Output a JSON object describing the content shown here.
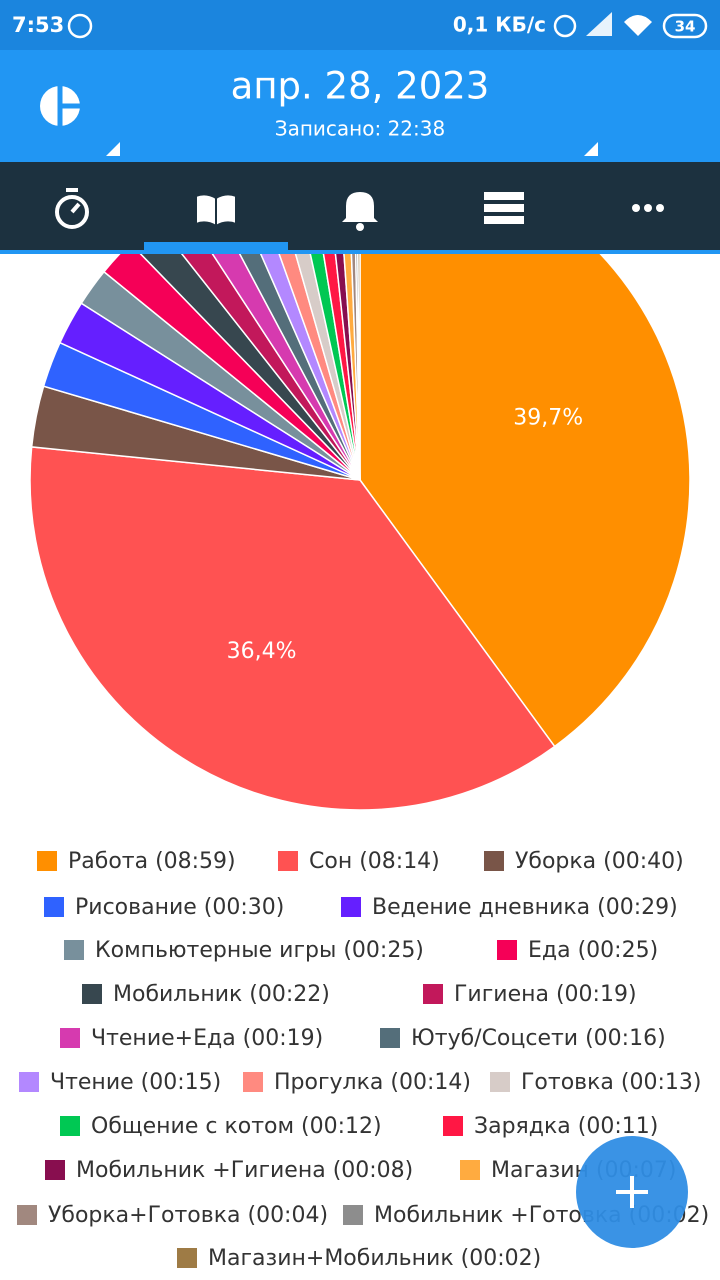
{
  "status_bar": {
    "time": "7:53",
    "speed": "0,1 КБ/с",
    "battery": "34"
  },
  "header": {
    "date": "апр. 28, 2023",
    "recorded": "Записано: 22:38"
  },
  "chart_data": {
    "type": "pie",
    "categories": [
      "Работа (08:59)",
      "Сон (08:14)",
      "Уборка (00:40)",
      "Рисование  (00:30)",
      "Ведение дневника  (00:29)",
      "Компьютерные игры  (00:25)",
      "Еда (00:25)",
      "Мобильник  (00:22)",
      "Гигиена  (00:19)",
      "Чтение+Еда (00:19)",
      "Ютуб/Соцсети (00:16)",
      "Чтение (00:15)",
      "Прогулка (00:14)",
      "Готовка (00:13)",
      "Общение с котом (00:12)",
      "Зарядка  (00:11)",
      "Мобильник +Гигиена  (00:08)",
      "Магазин (00:07)",
      "Уборка+Готовка (00:04)",
      "Мобильник +Готовка (00:02)",
      "Магазин+Мобильник  (00:02)"
    ],
    "values": [
      39.7,
      36.4,
      2.97,
      2.23,
      2.15,
      1.86,
      1.86,
      1.63,
      1.41,
      1.41,
      1.19,
      1.11,
      1.04,
      0.97,
      0.89,
      0.82,
      0.59,
      0.52,
      0.3,
      0.15,
      0.15
    ],
    "value_labels": [
      "39,7%",
      "36,4%",
      null,
      null,
      null,
      null,
      null,
      null,
      null,
      null,
      null,
      null,
      null,
      null,
      null,
      null,
      null,
      null,
      null,
      null,
      null
    ],
    "colors": [
      "#ff8f00",
      "#ff5252",
      "#795548",
      "#2f62ff",
      "#651fff",
      "#78909c",
      "#f50057",
      "#37474f",
      "#c2185b",
      "#d63aaf",
      "#546e7a",
      "#b388ff",
      "#ff8a80",
      "#d7ccc8",
      "#00c853",
      "#ff1744",
      "#880e4f",
      "#ffab40",
      "#a1887f",
      "#8d8d8d",
      "#9e7b45"
    ]
  }
}
